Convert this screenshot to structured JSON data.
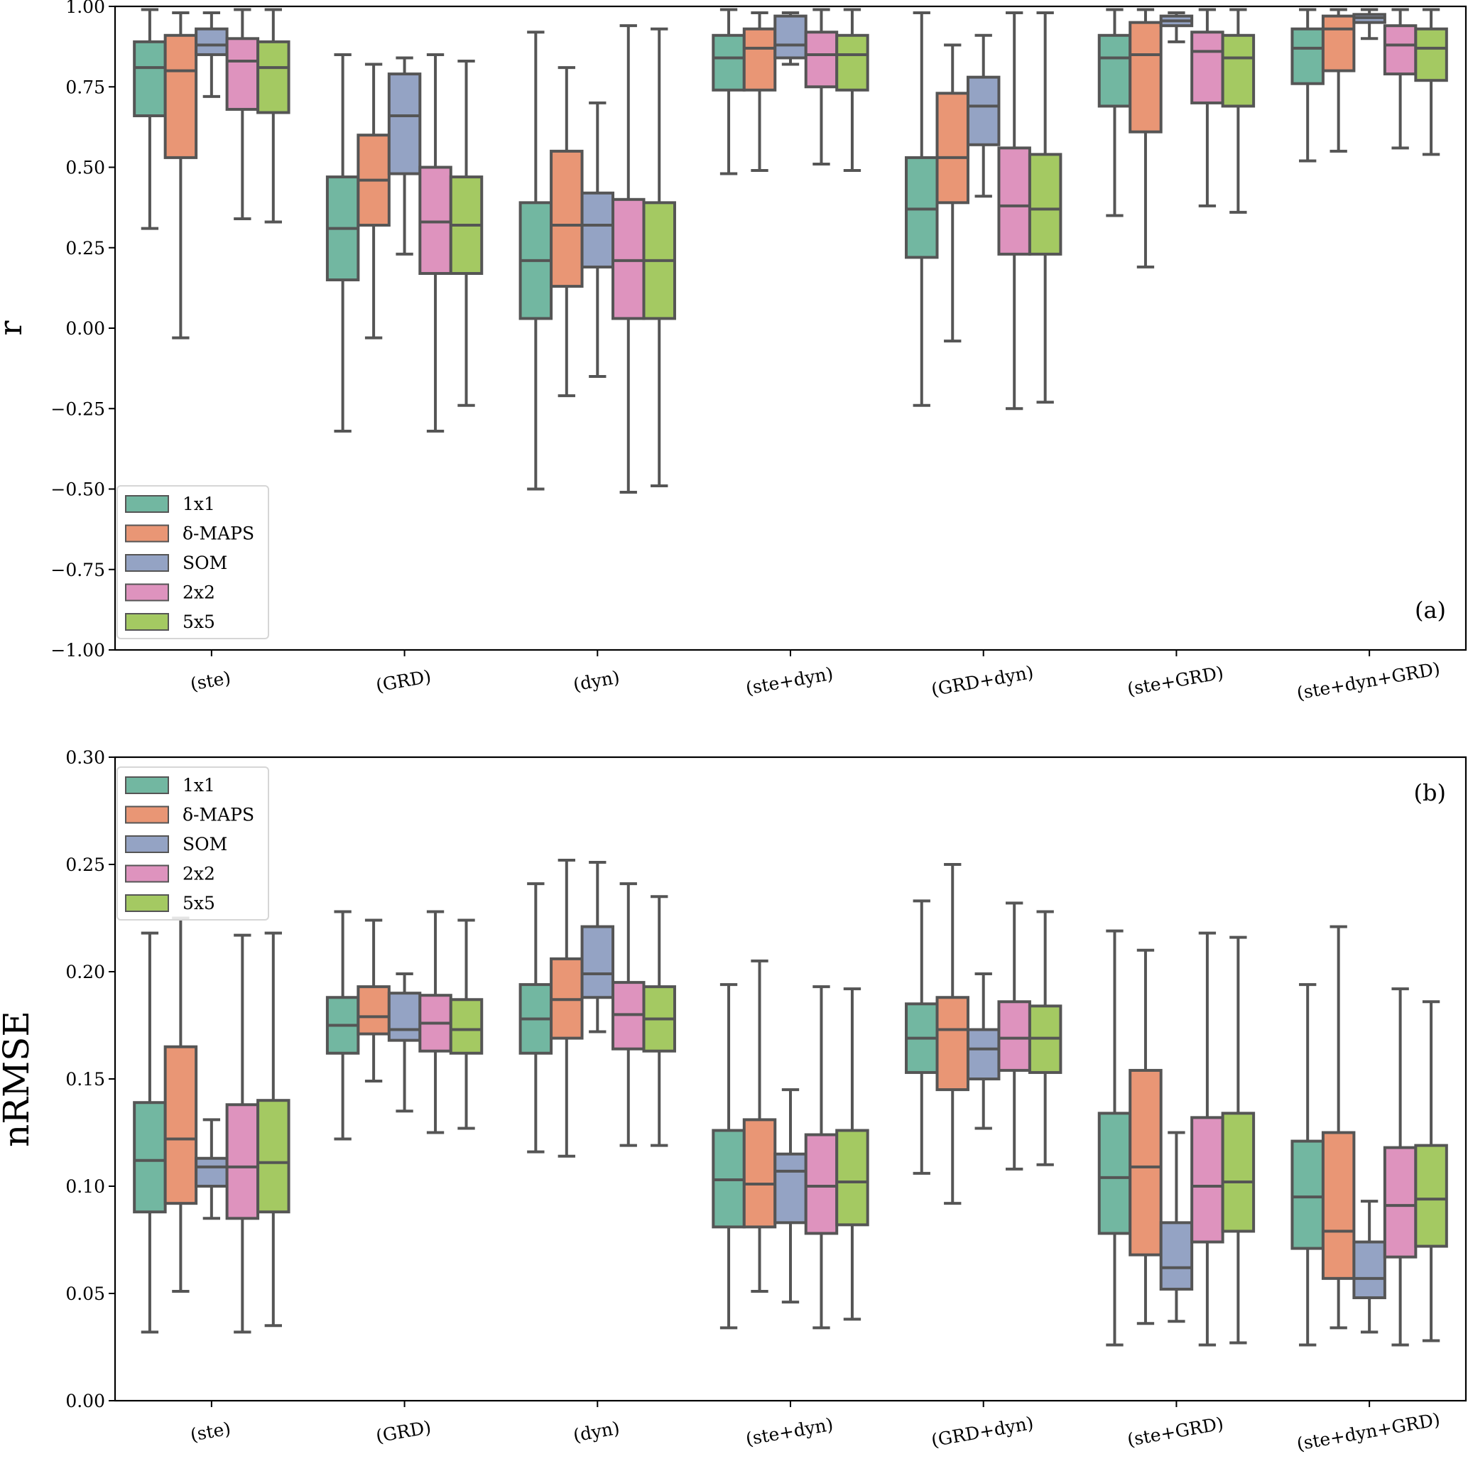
{
  "chart_data": [
    {
      "type": "box",
      "panel_label": "(a)",
      "title": "",
      "xlabel": "",
      "ylabel": "r",
      "ylim": [
        -1.0,
        1.0
      ],
      "yticks": [
        -1.0,
        -0.75,
        -0.5,
        -0.25,
        0.0,
        0.25,
        0.5,
        0.75,
        1.0
      ],
      "ytick_labels": [
        "−1.00",
        "−0.75",
        "−0.50",
        "−0.25",
        "0.00",
        "0.25",
        "0.50",
        "0.75",
        "1.00"
      ],
      "categories": [
        "(ste)",
        "(GRD)",
        "(dyn)",
        "(ste+dyn)",
        "(GRD+dyn)",
        "(ste+GRD)",
        "(ste+dyn+GRD)"
      ],
      "legend_position": "lower-left",
      "grid": false,
      "series": [
        {
          "name": "1x1",
          "color": "#72b7a1",
          "boxes": [
            {
              "whislo": 0.31,
              "q1": 0.66,
              "med": 0.81,
              "q3": 0.89,
              "whishi": 0.99
            },
            {
              "whislo": -0.32,
              "q1": 0.15,
              "med": 0.31,
              "q3": 0.47,
              "whishi": 0.85
            },
            {
              "whislo": -0.5,
              "q1": 0.03,
              "med": 0.21,
              "q3": 0.39,
              "whishi": 0.92
            },
            {
              "whislo": 0.48,
              "q1": 0.74,
              "med": 0.84,
              "q3": 0.91,
              "whishi": 0.99
            },
            {
              "whislo": -0.24,
              "q1": 0.22,
              "med": 0.37,
              "q3": 0.53,
              "whishi": 0.98
            },
            {
              "whislo": 0.35,
              "q1": 0.69,
              "med": 0.84,
              "q3": 0.91,
              "whishi": 0.99
            },
            {
              "whislo": 0.52,
              "q1": 0.76,
              "med": 0.87,
              "q3": 0.93,
              "whishi": 0.99
            }
          ]
        },
        {
          "name": "δ-MAPS",
          "color": "#e99675",
          "boxes": [
            {
              "whislo": -0.03,
              "q1": 0.53,
              "med": 0.8,
              "q3": 0.91,
              "whishi": 0.98
            },
            {
              "whislo": -0.03,
              "q1": 0.32,
              "med": 0.46,
              "q3": 0.6,
              "whishi": 0.82
            },
            {
              "whislo": -0.21,
              "q1": 0.13,
              "med": 0.32,
              "q3": 0.55,
              "whishi": 0.81
            },
            {
              "whislo": 0.49,
              "q1": 0.74,
              "med": 0.87,
              "q3": 0.93,
              "whishi": 0.98
            },
            {
              "whislo": -0.04,
              "q1": 0.39,
              "med": 0.53,
              "q3": 0.73,
              "whishi": 0.88
            },
            {
              "whislo": 0.19,
              "q1": 0.61,
              "med": 0.85,
              "q3": 0.95,
              "whishi": 0.99
            },
            {
              "whislo": 0.55,
              "q1": 0.8,
              "med": 0.93,
              "q3": 0.97,
              "whishi": 0.99
            }
          ]
        },
        {
          "name": "SOM",
          "color": "#94a3c4",
          "boxes": [
            {
              "whislo": 0.72,
              "q1": 0.85,
              "med": 0.88,
              "q3": 0.93,
              "whishi": 0.98
            },
            {
              "whislo": 0.23,
              "q1": 0.48,
              "med": 0.66,
              "q3": 0.79,
              "whishi": 0.84
            },
            {
              "whislo": -0.15,
              "q1": 0.19,
              "med": 0.32,
              "q3": 0.42,
              "whishi": 0.7
            },
            {
              "whislo": 0.82,
              "q1": 0.84,
              "med": 0.88,
              "q3": 0.97,
              "whishi": 0.98
            },
            {
              "whislo": 0.41,
              "q1": 0.57,
              "med": 0.69,
              "q3": 0.78,
              "whishi": 0.91
            },
            {
              "whislo": 0.89,
              "q1": 0.94,
              "med": 0.955,
              "q3": 0.97,
              "whishi": 0.98
            },
            {
              "whislo": 0.9,
              "q1": 0.95,
              "med": 0.965,
              "q3": 0.975,
              "whishi": 0.99
            }
          ]
        },
        {
          "name": "2x2",
          "color": "#de93be",
          "boxes": [
            {
              "whislo": 0.34,
              "q1": 0.68,
              "med": 0.83,
              "q3": 0.9,
              "whishi": 0.99
            },
            {
              "whislo": -0.32,
              "q1": 0.17,
              "med": 0.33,
              "q3": 0.5,
              "whishi": 0.85
            },
            {
              "whislo": -0.51,
              "q1": 0.03,
              "med": 0.21,
              "q3": 0.4,
              "whishi": 0.94
            },
            {
              "whislo": 0.51,
              "q1": 0.75,
              "med": 0.85,
              "q3": 0.92,
              "whishi": 0.99
            },
            {
              "whislo": -0.25,
              "q1": 0.23,
              "med": 0.38,
              "q3": 0.56,
              "whishi": 0.98
            },
            {
              "whislo": 0.38,
              "q1": 0.7,
              "med": 0.86,
              "q3": 0.92,
              "whishi": 0.99
            },
            {
              "whislo": 0.56,
              "q1": 0.79,
              "med": 0.88,
              "q3": 0.94,
              "whishi": 0.99
            }
          ]
        },
        {
          "name": "5x5",
          "color": "#a4c962",
          "boxes": [
            {
              "whislo": 0.33,
              "q1": 0.67,
              "med": 0.81,
              "q3": 0.89,
              "whishi": 0.99
            },
            {
              "whislo": -0.24,
              "q1": 0.17,
              "med": 0.32,
              "q3": 0.47,
              "whishi": 0.83
            },
            {
              "whislo": -0.49,
              "q1": 0.03,
              "med": 0.21,
              "q3": 0.39,
              "whishi": 0.93
            },
            {
              "whislo": 0.49,
              "q1": 0.74,
              "med": 0.85,
              "q3": 0.91,
              "whishi": 0.99
            },
            {
              "whislo": -0.23,
              "q1": 0.23,
              "med": 0.37,
              "q3": 0.54,
              "whishi": 0.98
            },
            {
              "whislo": 0.36,
              "q1": 0.69,
              "med": 0.84,
              "q3": 0.91,
              "whishi": 0.99
            },
            {
              "whislo": 0.54,
              "q1": 0.77,
              "med": 0.87,
              "q3": 0.93,
              "whishi": 0.99
            }
          ]
        }
      ]
    },
    {
      "type": "box",
      "panel_label": "(b)",
      "title": "",
      "xlabel": "",
      "ylabel": "nRMSE",
      "ylim": [
        0.0,
        0.3
      ],
      "yticks": [
        0.0,
        0.05,
        0.1,
        0.15,
        0.2,
        0.25,
        0.3
      ],
      "ytick_labels": [
        "0.00",
        "0.05",
        "0.10",
        "0.15",
        "0.20",
        "0.25",
        "0.30"
      ],
      "categories": [
        "(ste)",
        "(GRD)",
        "(dyn)",
        "(ste+dyn)",
        "(GRD+dyn)",
        "(ste+GRD)",
        "(ste+dyn+GRD)"
      ],
      "legend_position": "upper-left",
      "grid": false,
      "series": [
        {
          "name": "1x1",
          "color": "#72b7a1",
          "boxes": [
            {
              "whislo": 0.032,
              "q1": 0.088,
              "med": 0.112,
              "q3": 0.139,
              "whishi": 0.218
            },
            {
              "whislo": 0.122,
              "q1": 0.162,
              "med": 0.175,
              "q3": 0.188,
              "whishi": 0.228
            },
            {
              "whislo": 0.116,
              "q1": 0.162,
              "med": 0.178,
              "q3": 0.194,
              "whishi": 0.241
            },
            {
              "whislo": 0.034,
              "q1": 0.081,
              "med": 0.103,
              "q3": 0.126,
              "whishi": 0.194
            },
            {
              "whislo": 0.106,
              "q1": 0.153,
              "med": 0.169,
              "q3": 0.185,
              "whishi": 0.233
            },
            {
              "whislo": 0.026,
              "q1": 0.078,
              "med": 0.104,
              "q3": 0.134,
              "whishi": 0.219
            },
            {
              "whislo": 0.026,
              "q1": 0.071,
              "med": 0.095,
              "q3": 0.121,
              "whishi": 0.194
            }
          ]
        },
        {
          "name": "δ-MAPS",
          "color": "#e99675",
          "boxes": [
            {
              "whislo": 0.051,
              "q1": 0.092,
              "med": 0.122,
              "q3": 0.165,
              "whishi": 0.225
            },
            {
              "whislo": 0.149,
              "q1": 0.171,
              "med": 0.179,
              "q3": 0.193,
              "whishi": 0.224
            },
            {
              "whislo": 0.114,
              "q1": 0.169,
              "med": 0.187,
              "q3": 0.206,
              "whishi": 0.252
            },
            {
              "whislo": 0.051,
              "q1": 0.081,
              "med": 0.101,
              "q3": 0.131,
              "whishi": 0.205
            },
            {
              "whislo": 0.092,
              "q1": 0.145,
              "med": 0.173,
              "q3": 0.188,
              "whishi": 0.25
            },
            {
              "whislo": 0.036,
              "q1": 0.068,
              "med": 0.109,
              "q3": 0.154,
              "whishi": 0.21
            },
            {
              "whislo": 0.034,
              "q1": 0.057,
              "med": 0.079,
              "q3": 0.125,
              "whishi": 0.221
            }
          ]
        },
        {
          "name": "SOM",
          "color": "#94a3c4",
          "boxes": [
            {
              "whislo": 0.085,
              "q1": 0.1,
              "med": 0.109,
              "q3": 0.113,
              "whishi": 0.131
            },
            {
              "whislo": 0.135,
              "q1": 0.168,
              "med": 0.173,
              "q3": 0.19,
              "whishi": 0.199
            },
            {
              "whislo": 0.172,
              "q1": 0.188,
              "med": 0.199,
              "q3": 0.221,
              "whishi": 0.251
            },
            {
              "whislo": 0.046,
              "q1": 0.083,
              "med": 0.107,
              "q3": 0.115,
              "whishi": 0.145
            },
            {
              "whislo": 0.127,
              "q1": 0.15,
              "med": 0.164,
              "q3": 0.173,
              "whishi": 0.199
            },
            {
              "whislo": 0.037,
              "q1": 0.052,
              "med": 0.062,
              "q3": 0.083,
              "whishi": 0.125
            },
            {
              "whislo": 0.032,
              "q1": 0.048,
              "med": 0.057,
              "q3": 0.074,
              "whishi": 0.093
            }
          ]
        },
        {
          "name": "2x2",
          "color": "#de93be",
          "boxes": [
            {
              "whislo": 0.032,
              "q1": 0.085,
              "med": 0.109,
              "q3": 0.138,
              "whishi": 0.217
            },
            {
              "whislo": 0.125,
              "q1": 0.163,
              "med": 0.176,
              "q3": 0.189,
              "whishi": 0.228
            },
            {
              "whislo": 0.119,
              "q1": 0.164,
              "med": 0.18,
              "q3": 0.195,
              "whishi": 0.241
            },
            {
              "whislo": 0.034,
              "q1": 0.078,
              "med": 0.1,
              "q3": 0.124,
              "whishi": 0.193
            },
            {
              "whislo": 0.108,
              "q1": 0.154,
              "med": 0.169,
              "q3": 0.186,
              "whishi": 0.232
            },
            {
              "whislo": 0.026,
              "q1": 0.074,
              "med": 0.1,
              "q3": 0.132,
              "whishi": 0.218
            },
            {
              "whislo": 0.026,
              "q1": 0.067,
              "med": 0.091,
              "q3": 0.118,
              "whishi": 0.192
            }
          ]
        },
        {
          "name": "5x5",
          "color": "#a4c962",
          "boxes": [
            {
              "whislo": 0.035,
              "q1": 0.088,
              "med": 0.111,
              "q3": 0.14,
              "whishi": 0.218
            },
            {
              "whislo": 0.127,
              "q1": 0.162,
              "med": 0.173,
              "q3": 0.187,
              "whishi": 0.224
            },
            {
              "whislo": 0.119,
              "q1": 0.163,
              "med": 0.178,
              "q3": 0.193,
              "whishi": 0.235
            },
            {
              "whislo": 0.038,
              "q1": 0.082,
              "med": 0.102,
              "q3": 0.126,
              "whishi": 0.192
            },
            {
              "whislo": 0.11,
              "q1": 0.153,
              "med": 0.169,
              "q3": 0.184,
              "whishi": 0.228
            },
            {
              "whislo": 0.027,
              "q1": 0.079,
              "med": 0.102,
              "q3": 0.134,
              "whishi": 0.216
            },
            {
              "whislo": 0.028,
              "q1": 0.072,
              "med": 0.094,
              "q3": 0.119,
              "whishi": 0.186
            }
          ]
        }
      ]
    }
  ]
}
